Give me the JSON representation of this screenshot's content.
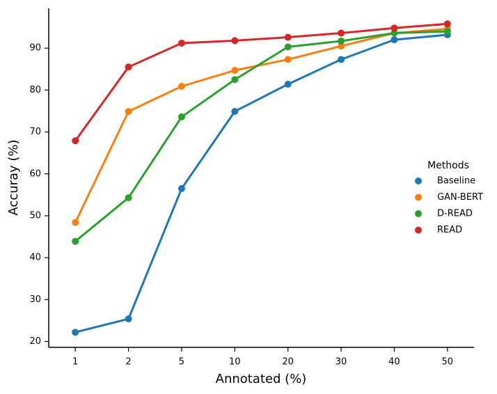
{
  "chart_data": {
    "type": "line",
    "x_label": "Annotated (%)",
    "y_label": "Accuray (%)",
    "categories": [
      "1",
      "2",
      "5",
      "10",
      "20",
      "30",
      "40",
      "50"
    ],
    "series": [
      {
        "name": "Baseline",
        "color": "#1f77b4",
        "values": [
          22.2,
          25.4,
          56.5,
          74.9,
          81.4,
          87.3,
          92.0,
          93.2
        ]
      },
      {
        "name": "GAN-BERT",
        "color": "#ff7f0e",
        "values": [
          48.4,
          74.9,
          80.9,
          84.7,
          87.3,
          90.5,
          93.6,
          94.6
        ]
      },
      {
        "name": "D-READ",
        "color": "#2ca02c",
        "values": [
          43.9,
          54.3,
          73.6,
          82.5,
          90.3,
          91.7,
          93.6,
          94.0
        ]
      },
      {
        "name": "READ",
        "color": "#d62728",
        "values": [
          67.9,
          85.5,
          91.2,
          91.8,
          92.6,
          93.6,
          94.8,
          95.8
        ]
      }
    ],
    "ylim": [
      18.6,
      99.5
    ],
    "yticks": [
      20,
      30,
      40,
      50,
      60,
      70,
      80,
      90
    ],
    "legend_title": "Methods",
    "legend_position": "right",
    "grid": false
  }
}
